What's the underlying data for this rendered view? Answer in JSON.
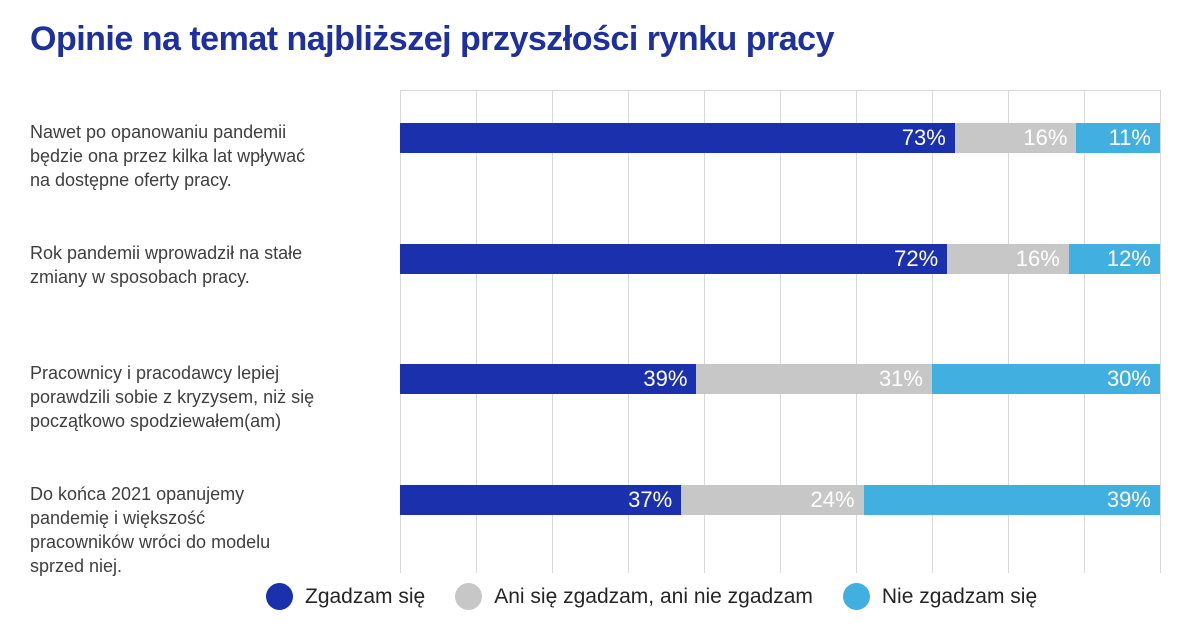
{
  "title": "Opinie na temat najbliższej przyszłości rynku pracy",
  "colors": {
    "title_text": "#1E2F9E",
    "agree": "#1B30AD",
    "neutral": "#C7C7C7",
    "disagree": "#41AFE0",
    "gridline": "#D9D9D9",
    "category_text": "#3F3F3F",
    "legend_text": "#252525",
    "value_text": "#FFFFFF"
  },
  "chart_data": {
    "type": "bar",
    "orientation": "horizontal",
    "stacked": true,
    "title": "Opinie na temat najbliższej przyszłości rynku pracy",
    "unit": "%",
    "xlim": [
      0,
      100
    ],
    "grid": "vertical gridlines every 10%, no tick labels",
    "legend_position": "bottom",
    "categories": [
      "Nawet po opanowaniu pandemii\nbędzie ona przez kilka lat wpływać\nna dostępne oferty pracy.",
      "Rok pandemii wprowadził na stałe\nzmiany w sposobach pracy.",
      "Pracownicy i pracodawcy lepiej\nporawdzili sobie z kryzysem, niż się\npoczątkowo spodziewałem(am)",
      "Do końca 2021 opanujemy\npandemię i większość\npracowników wróci do modelu\nsprzed niej."
    ],
    "series": [
      {
        "name": "Zgadzam się",
        "color": "#1B30AD",
        "values": [
          73,
          72,
          39,
          37
        ]
      },
      {
        "name": "Ani się zgadzam, ani nie zgadzam",
        "color": "#C7C7C7",
        "values": [
          16,
          16,
          31,
          24
        ]
      },
      {
        "name": "Nie zgadzam się",
        "color": "#41AFE0",
        "values": [
          11,
          12,
          30,
          39
        ]
      }
    ],
    "value_labels": "inside segments, right-aligned, white, format {value}%"
  }
}
